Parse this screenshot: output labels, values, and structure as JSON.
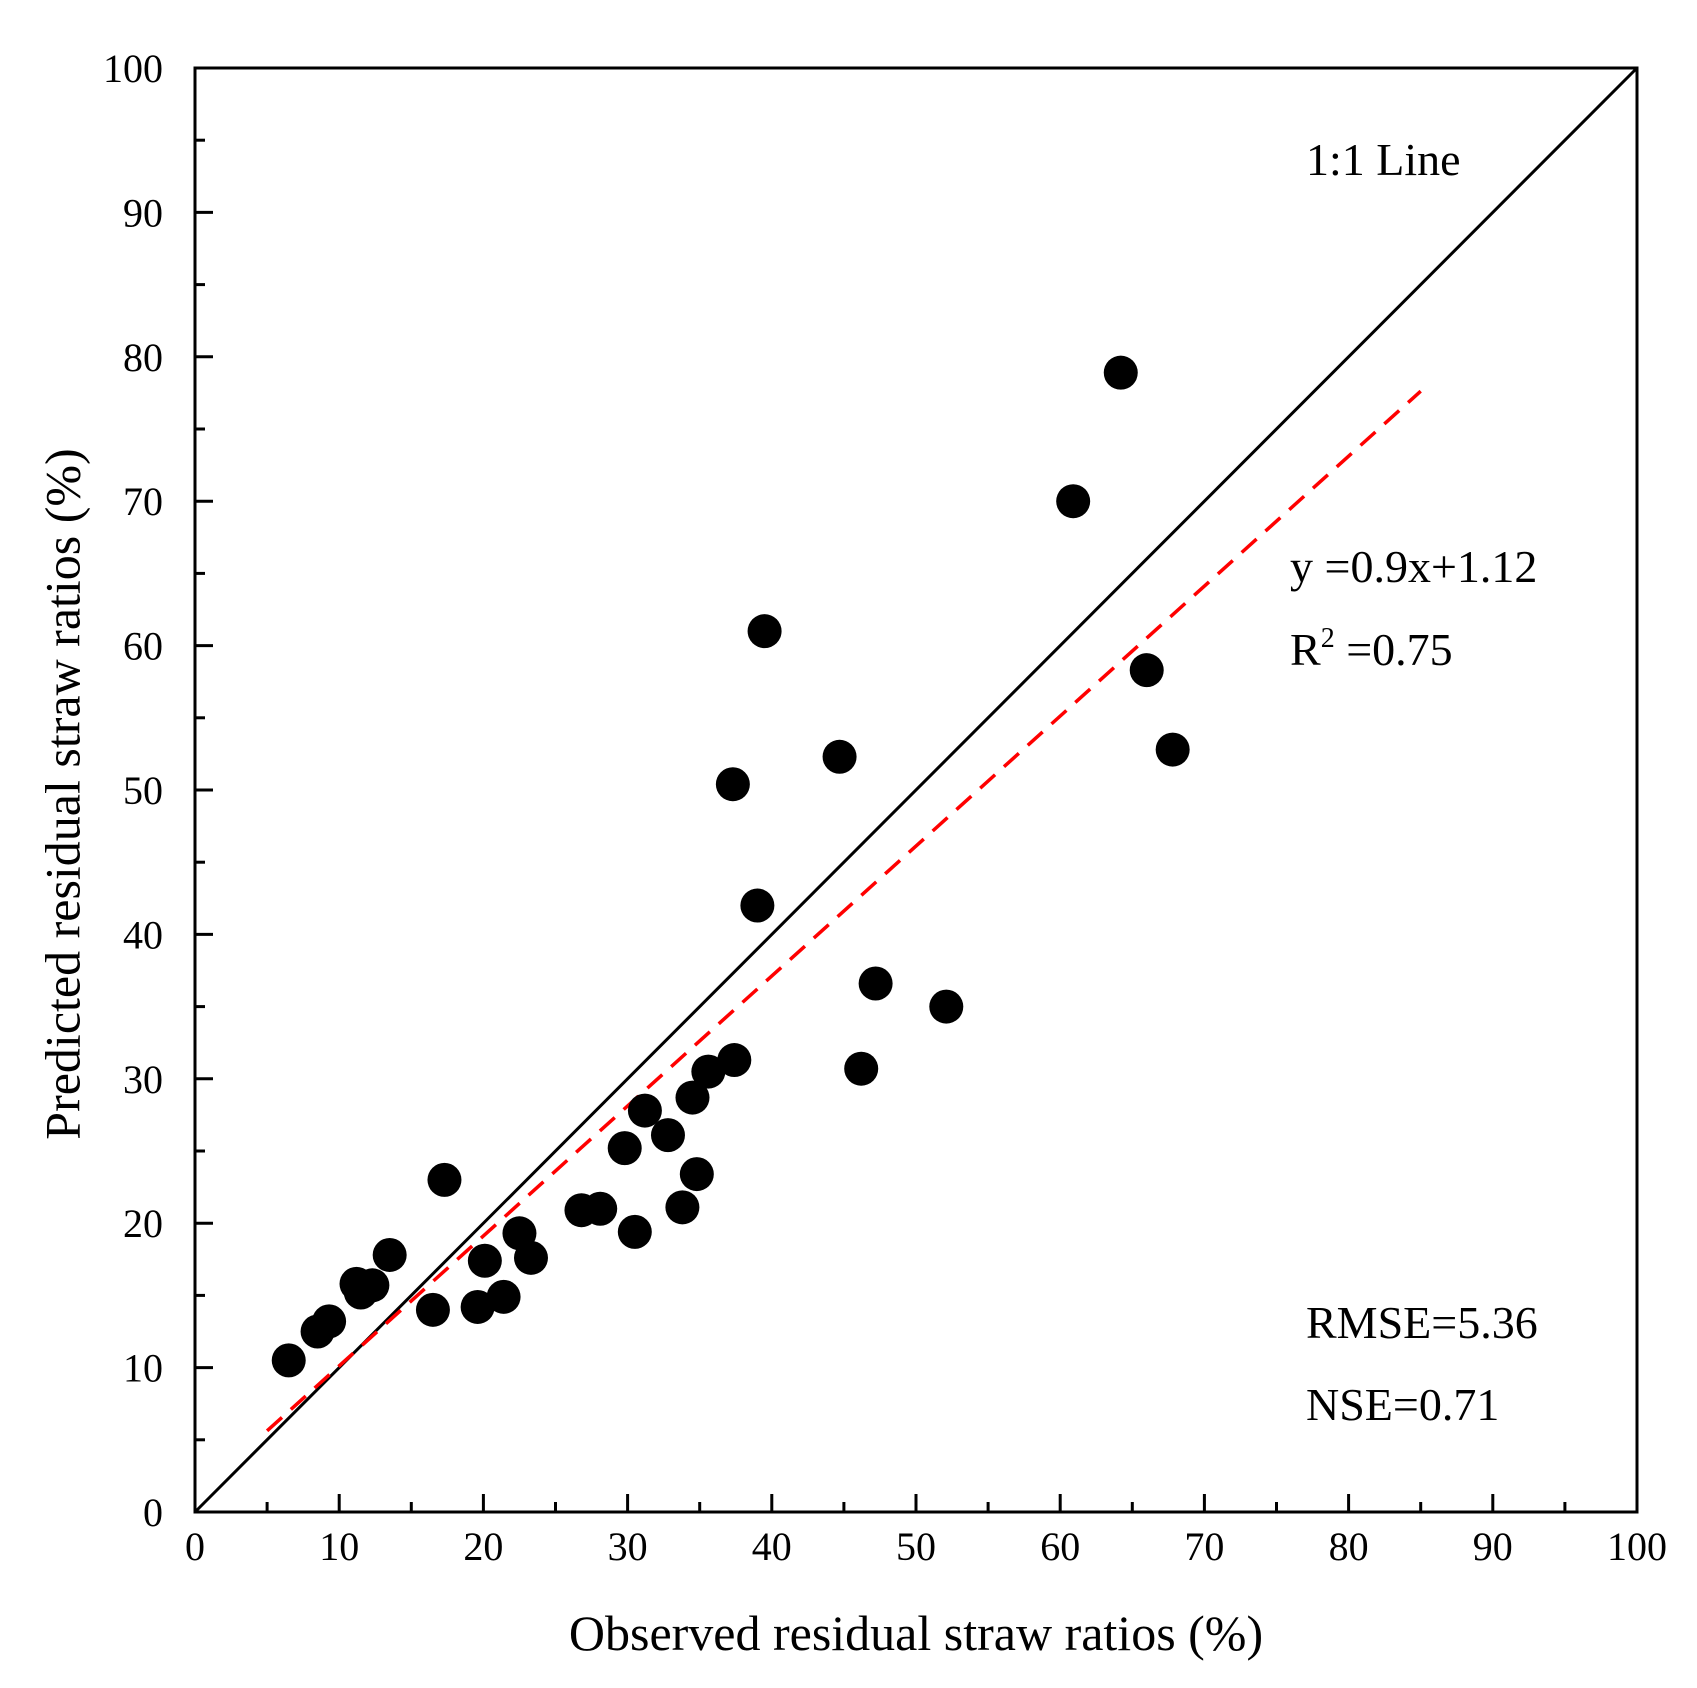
{
  "chart_data": {
    "type": "scatter",
    "title": "",
    "xlabel": "Observed residual straw ratios (%)",
    "ylabel": "Predicted residual straw ratios (%)",
    "xlim": [
      0,
      100
    ],
    "ylim": [
      0,
      100
    ],
    "xticks": [
      "0",
      "10",
      "20",
      "30",
      "40",
      "50",
      "60",
      "70",
      "80",
      "90",
      "100"
    ],
    "yticks": [
      "0",
      "10",
      "20",
      "30",
      "40",
      "50",
      "60",
      "70",
      "80",
      "90",
      "100"
    ],
    "grid": false,
    "points": [
      {
        "x": 6.5,
        "y": 10.5
      },
      {
        "x": 8.5,
        "y": 12.5
      },
      {
        "x": 9.3,
        "y": 13.2
      },
      {
        "x": 11.2,
        "y": 15.8
      },
      {
        "x": 11.5,
        "y": 15.2
      },
      {
        "x": 12.3,
        "y": 15.7
      },
      {
        "x": 13.5,
        "y": 17.8
      },
      {
        "x": 16.5,
        "y": 14.0
      },
      {
        "x": 17.3,
        "y": 23.0
      },
      {
        "x": 19.6,
        "y": 14.2
      },
      {
        "x": 20.1,
        "y": 17.4
      },
      {
        "x": 21.4,
        "y": 14.9
      },
      {
        "x": 22.5,
        "y": 19.3
      },
      {
        "x": 23.3,
        "y": 17.6
      },
      {
        "x": 26.8,
        "y": 20.9
      },
      {
        "x": 28.1,
        "y": 21.0
      },
      {
        "x": 29.8,
        "y": 25.2
      },
      {
        "x": 30.5,
        "y": 19.4
      },
      {
        "x": 31.2,
        "y": 27.8
      },
      {
        "x": 32.8,
        "y": 26.1
      },
      {
        "x": 33.8,
        "y": 21.1
      },
      {
        "x": 34.5,
        "y": 28.7
      },
      {
        "x": 34.8,
        "y": 23.4
      },
      {
        "x": 35.6,
        "y": 30.5
      },
      {
        "x": 37.4,
        "y": 31.3
      },
      {
        "x": 37.3,
        "y": 50.4
      },
      {
        "x": 39.0,
        "y": 42.0
      },
      {
        "x": 39.5,
        "y": 61.0
      },
      {
        "x": 44.7,
        "y": 52.3
      },
      {
        "x": 46.2,
        "y": 30.7
      },
      {
        "x": 47.2,
        "y": 36.6
      },
      {
        "x": 52.1,
        "y": 35.0
      },
      {
        "x": 60.9,
        "y": 70.0
      },
      {
        "x": 64.2,
        "y": 78.9
      },
      {
        "x": 66.0,
        "y": 58.3
      },
      {
        "x": 67.8,
        "y": 52.8
      }
    ],
    "reference_line": {
      "label": "1:1 Line",
      "from": [
        0,
        0
      ],
      "to": [
        100,
        100
      ],
      "color": "#000000"
    },
    "fit_line": {
      "slope": 0.9,
      "intercept": 1.12,
      "x_range": [
        5,
        85
      ],
      "style": "dashed",
      "color": "#ff0000"
    },
    "annotations": {
      "one_to_one": "1:1 Line",
      "equation": "y =0.9x+1.12",
      "r2_prefix": "R",
      "r2_sup": "2",
      "r2_suffix": " =0.75",
      "rmse": "RMSE=5.36",
      "nse": "NSE=0.71"
    },
    "colors": {
      "points": "#000000",
      "axes": "#000000"
    }
  }
}
